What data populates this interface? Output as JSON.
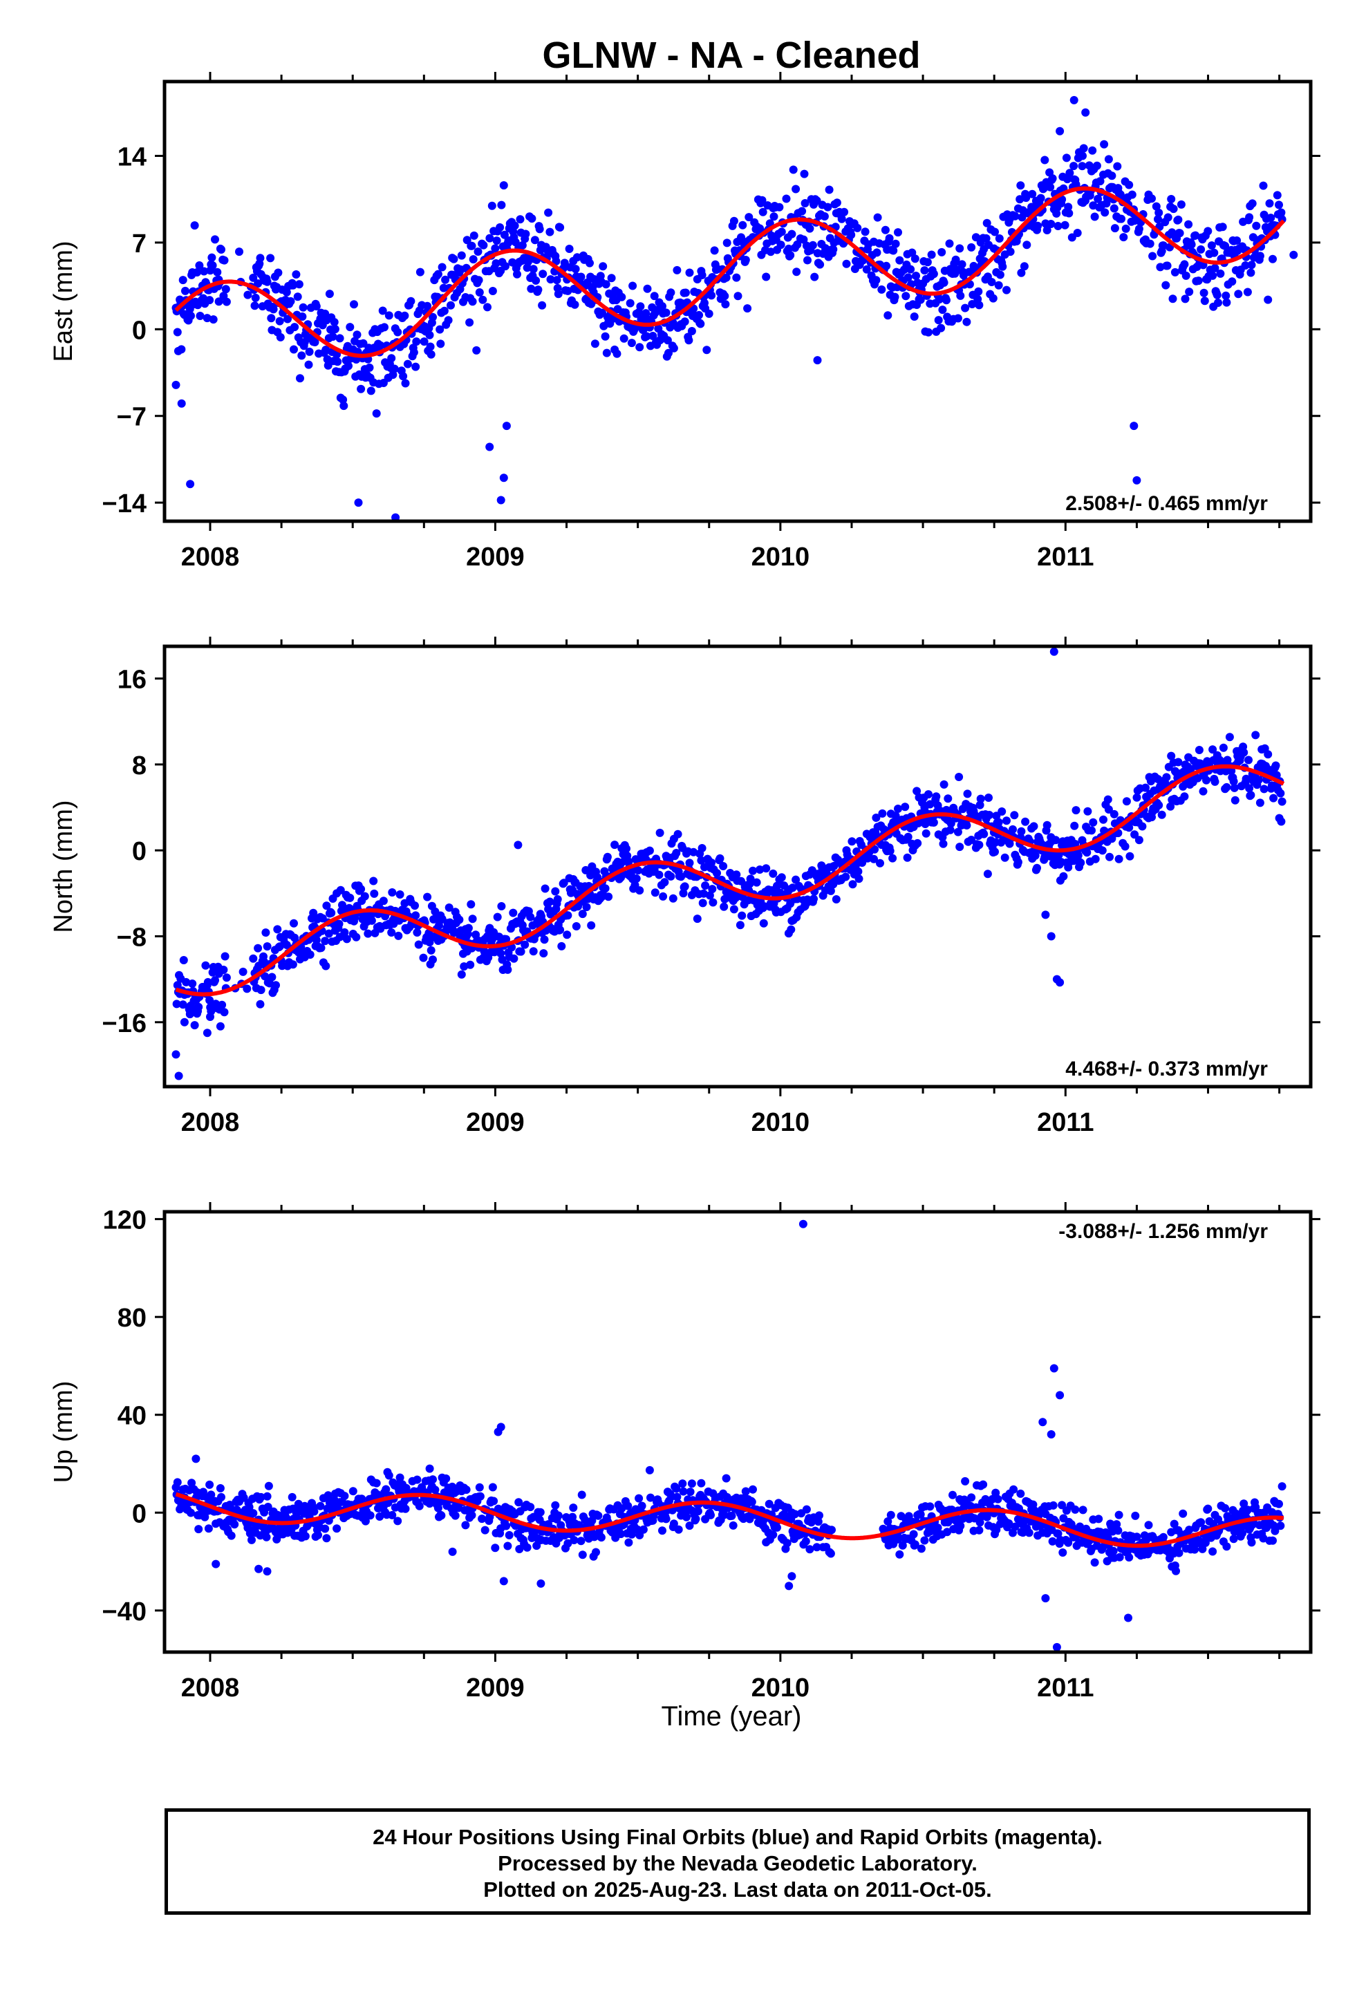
{
  "title": "GLNW  - NA - Cleaned",
  "xlabel": "Time (year)",
  "caption": {
    "line1": "24 Hour Positions Using Final Orbits (blue) and Rapid Orbits (magenta).",
    "line2": "Processed by the Nevada Geodetic Laboratory.",
    "line3": "Plotted on 2025-Aug-23. Last data on 2011-Oct-05."
  },
  "colors": {
    "points": "#0000ff",
    "fit": "#ff0000",
    "axes": "#000000"
  },
  "chart_data": [
    {
      "type": "scatter",
      "panel": "east",
      "ylabel": "East (mm)",
      "rate_label": "2.508+/- 0.465 mm/yr",
      "rate_position": "bottom-right",
      "xlim": [
        2007.84,
        2011.86
      ],
      "ylim": [
        -15.5,
        20
      ],
      "xticks": [
        2008,
        2009,
        2010,
        2011
      ],
      "xticklabels": [
        "2008",
        "2009",
        "2010",
        "2011"
      ],
      "yticks": [
        -14,
        -7,
        0,
        7,
        14
      ],
      "yticklabels": [
        "−14",
        "−7",
        "0",
        "7",
        "14"
      ],
      "fit": {
        "rate": 2.508,
        "rate_sigma": 0.465,
        "annual_amplitude": 3.6,
        "annual_peak": 0.05,
        "offset_at_2008": 0.1
      },
      "scatter_sigma": 1.7,
      "points": [
        [
          2007.93,
          -12.5
        ],
        [
          2008.52,
          -14.0
        ],
        [
          2008.65,
          -15.2
        ],
        [
          2008.98,
          -9.5
        ],
        [
          2009.02,
          -13.8
        ],
        [
          2009.03,
          -12.0
        ],
        [
          2009.04,
          -7.8
        ],
        [
          2010.13,
          -2.5
        ],
        [
          2010.98,
          16.0
        ],
        [
          2011.03,
          18.5
        ],
        [
          2011.06,
          14.0
        ],
        [
          2011.07,
          17.5
        ],
        [
          2011.24,
          -7.8
        ],
        [
          2011.25,
          -12.2
        ],
        [
          2011.72,
          9.0
        ],
        [
          2011.8,
          6.0
        ],
        [
          2008.03,
          4.0
        ],
        [
          2008.22,
          1.8
        ],
        [
          2007.88,
          -4.5
        ],
        [
          2007.9,
          -6.0
        ]
      ]
    },
    {
      "type": "scatter",
      "panel": "north",
      "ylabel": "North (mm)",
      "rate_label": "4.468+/- 0.373 mm/yr",
      "rate_position": "bottom-right",
      "xlim": [
        2007.84,
        2011.86
      ],
      "ylim": [
        -22,
        19
      ],
      "xticks": [
        2008,
        2009,
        2010,
        2011
      ],
      "xticklabels": [
        "2008",
        "2009",
        "2010",
        "2011"
      ],
      "yticks": [
        -16,
        -8,
        0,
        8,
        16
      ],
      "yticklabels": [
        "−16",
        "−8",
        "0",
        "8",
        "16"
      ],
      "fit": {
        "rate": 4.468,
        "rate_sigma": 0.373,
        "annual_amplitude": 2.7,
        "annual_peak": 0.52,
        "offset_at_2008": -10.7
      },
      "scatter_sigma": 1.3,
      "points": [
        [
          2007.88,
          -19.0
        ],
        [
          2007.89,
          -21.0
        ],
        [
          2007.91,
          -16.0
        ],
        [
          2007.93,
          -15.0
        ],
        [
          2007.99,
          -17.0
        ],
        [
          2008.0,
          -15.5
        ],
        [
          2010.95,
          -8.0
        ],
        [
          2010.97,
          -12.0
        ],
        [
          2010.98,
          -12.3
        ],
        [
          2010.96,
          18.5
        ],
        [
          2010.94,
          0.0
        ],
        [
          2010.93,
          -6.0
        ],
        [
          2011.75,
          3.0
        ],
        [
          2009.08,
          0.5
        ]
      ]
    },
    {
      "type": "scatter",
      "panel": "up",
      "ylabel": "Up (mm)",
      "rate_label": "-3.088+/- 1.256 mm/yr",
      "rate_position": "top-right",
      "xlim": [
        2007.84,
        2011.86
      ],
      "ylim": [
        -57,
        123
      ],
      "xticks": [
        2008,
        2009,
        2010,
        2011
      ],
      "xticklabels": [
        "2008",
        "2009",
        "2010",
        "2011"
      ],
      "yticks": [
        -40,
        0,
        40,
        80,
        120
      ],
      "yticklabels": [
        "−40",
        "0",
        "40",
        "80",
        "120"
      ],
      "fit": {
        "rate": -3.088,
        "rate_sigma": 1.256,
        "annual_amplitude": 6.5,
        "annual_peak": 0.74,
        "offset_at_2008": 3.0
      },
      "scatter_sigma": 4.5,
      "points": [
        [
          2010.08,
          118.0
        ],
        [
          2010.96,
          59.0
        ],
        [
          2010.98,
          48.0
        ],
        [
          2010.95,
          32.0
        ],
        [
          2010.92,
          37.0
        ],
        [
          2010.97,
          -55.0
        ],
        [
          2010.93,
          -35.0
        ],
        [
          2011.22,
          -43.0
        ],
        [
          2010.03,
          -30.0
        ],
        [
          2010.04,
          -26.0
        ],
        [
          2009.01,
          33.0
        ],
        [
          2009.02,
          35.0
        ],
        [
          2009.03,
          -28.0
        ],
        [
          2009.16,
          -29.0
        ],
        [
          2008.02,
          -21.0
        ],
        [
          2008.17,
          -23.0
        ],
        [
          2008.2,
          -24.0
        ],
        [
          2008.77,
          18.0
        ],
        [
          2008.85,
          -16.0
        ],
        [
          2007.95,
          22.0
        ]
      ]
    }
  ]
}
